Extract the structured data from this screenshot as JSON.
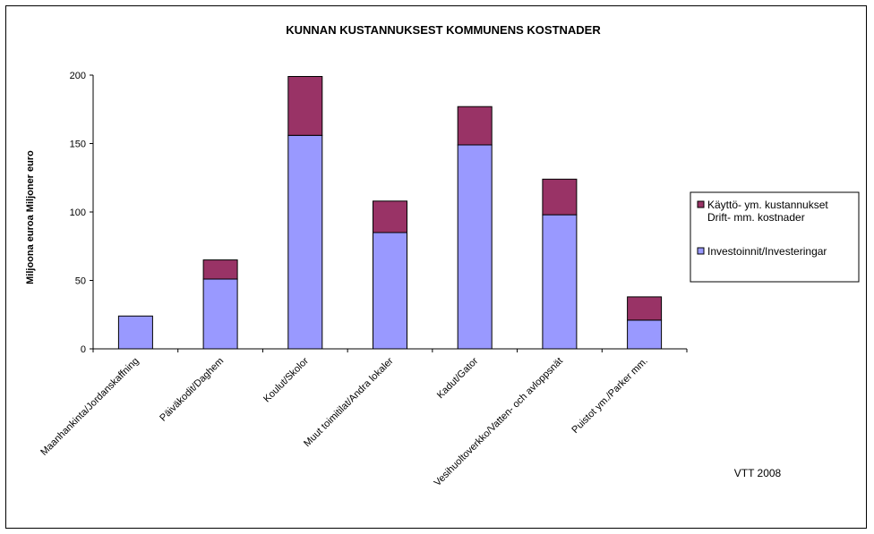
{
  "chart_data": {
    "type": "bar",
    "stacked": true,
    "title": "KUNNAN KUSTANNUKSEST KOMMUNENS KOSTNADER",
    "ylabel": "Miljoona euroa Miljoner euro",
    "ylim": [
      0,
      200
    ],
    "yticks": [
      0,
      50,
      100,
      150,
      200
    ],
    "categories": [
      "Maanhankinta/Jordanskaffning",
      "Päiväkodit/Daghem",
      "Koulut/Skolor",
      "Muut toimitilat/Andra lokaler",
      "Kadut/Gator",
      "Vesihuoltoverkko/Vatten- och avloppsnät",
      "Puistot ym./Parker mm."
    ],
    "series": [
      {
        "name": "Investoinnit/Investeringar",
        "color": "#9999ff",
        "values": [
          24,
          51,
          156,
          85,
          149,
          98,
          21
        ]
      },
      {
        "name_lines": [
          "Käyttö- ym. kustannukset",
          "Drift- mm. kostnader"
        ],
        "color": "#993366",
        "values": [
          0,
          14,
          43,
          23,
          28,
          26,
          17
        ]
      }
    ],
    "legend": "right",
    "grid": false,
    "credit": "VTT 2008"
  }
}
